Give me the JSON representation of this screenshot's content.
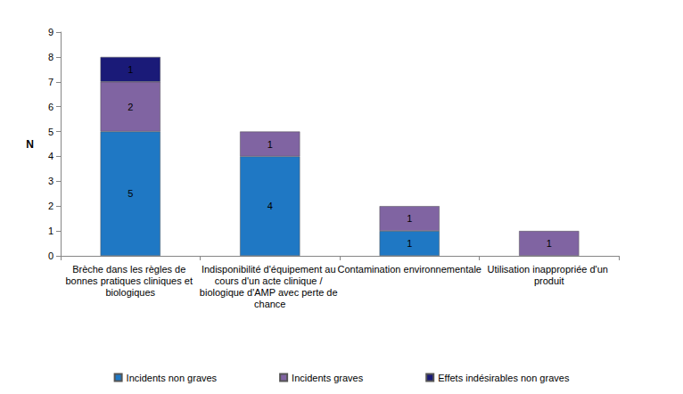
{
  "chart_data": {
    "type": "bar",
    "stacked": true,
    "data_labels": true,
    "grid": false,
    "legend": "bottom",
    "y_label": "N",
    "categories": [
      "Brèche dans les règles de bonnes pratiques cliniques et biologiques",
      "Indisponibilité d'équipement au cours d'un acte clinique / biologique d'AMP avec perte de chance",
      "Contamination environnementale",
      "Utilisation inappropriée d'un produit"
    ],
    "series": [
      {
        "name": "Incidents non graves",
        "color": "#1f78c4",
        "values": [
          5,
          4,
          1,
          null
        ]
      },
      {
        "name": "Incidents graves",
        "color": "#8064a2",
        "values": [
          2,
          1,
          1,
          1
        ]
      },
      {
        "name": "Effets indésirables non graves",
        "color": "#1a1a78",
        "values": [
          1,
          null,
          null,
          null
        ]
      }
    ],
    "ylim": [
      0,
      9
    ],
    "yticks": [
      0,
      1,
      2,
      3,
      4,
      5,
      6,
      7,
      8,
      9
    ]
  }
}
